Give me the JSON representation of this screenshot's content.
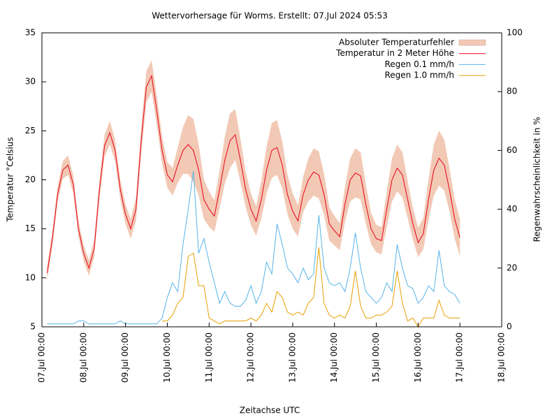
{
  "chart_data": {
    "type": "line",
    "title": "Wettervorhersage für Worms. Erstellt: 07.Jul 2024 05:53",
    "xlabel": "Zeitachse UTC",
    "ylabel": "Temperatur °Celsius",
    "y2label": "Regenwahrscheinlichkeit in %",
    "legend": "top-right",
    "x": [
      3,
      6,
      9,
      12,
      15,
      18,
      21,
      24,
      27,
      30,
      33,
      36,
      39,
      42,
      45,
      48,
      51,
      54,
      57,
      60,
      63,
      66,
      69,
      72,
      75,
      78,
      81,
      84,
      87,
      90,
      93,
      96,
      99,
      102,
      105,
      108,
      111,
      114,
      117,
      120,
      123,
      126,
      129,
      132,
      135,
      138,
      141,
      144,
      147,
      150,
      153,
      156,
      159,
      162,
      165,
      168,
      171,
      174,
      177,
      180,
      183,
      186,
      189,
      192,
      195,
      198,
      201,
      204,
      207,
      210,
      213,
      216,
      219,
      222,
      225,
      228,
      231,
      234,
      237,
      240
    ],
    "xlim": [
      0,
      264
    ],
    "xticks": [
      {
        "value": 0,
        "label": "07.Jul 00:00"
      },
      {
        "value": 24,
        "label": "08.Jul 00:00"
      },
      {
        "value": 48,
        "label": "09.Jul 00:00"
      },
      {
        "value": 72,
        "label": "10.Jul 00:00"
      },
      {
        "value": 96,
        "label": "11.Jul 00:00"
      },
      {
        "value": 120,
        "label": "12.Jul 00:00"
      },
      {
        "value": 144,
        "label": "13.Jul 00:00"
      },
      {
        "value": 168,
        "label": "14.Jul 00:00"
      },
      {
        "value": 192,
        "label": "15.Jul 00:00"
      },
      {
        "value": 216,
        "label": "16.Jul 00:00"
      },
      {
        "value": 240,
        "label": "17.Jul 00:00"
      },
      {
        "value": 264,
        "label": "18.Jul 00:00"
      }
    ],
    "ylim": [
      5,
      35
    ],
    "yticks": [
      5,
      10,
      15,
      20,
      25,
      30,
      35
    ],
    "y2lim": [
      0,
      100
    ],
    "y2ticks": [
      0,
      20,
      40,
      60,
      80,
      100
    ],
    "series": [
      {
        "name": "Absoluter Temperaturfehler",
        "color": "#f2c9b5",
        "style": "errorband",
        "values": [
          0.7,
          0.8,
          0.8,
          0.9,
          1,
          0.9,
          0.8,
          0.8,
          0.8,
          0.9,
          1,
          1.1,
          1.2,
          1.1,
          1,
          1,
          1,
          1.2,
          1.4,
          1.6,
          1.6,
          1.5,
          1.4,
          1.3,
          1.4,
          1.8,
          2.4,
          3,
          3.2,
          2.6,
          2,
          1.8,
          1.6,
          1.9,
          2.4,
          2.8,
          2.6,
          2.2,
          1.8,
          1.6,
          1.5,
          1.9,
          2.4,
          2.8,
          2.8,
          2.4,
          2,
          1.8,
          1.6,
          1.8,
          2.2,
          2.4,
          2.4,
          2.1,
          1.7,
          1.5,
          1.4,
          1.8,
          2.2,
          2.5,
          2.4,
          2,
          1.6,
          1.4,
          1.4,
          1.8,
          2.2,
          2.4,
          2.3,
          1.9,
          1.6,
          1.5,
          1.6,
          2.1,
          2.6,
          2.8,
          2.6,
          2.2,
          2,
          1.9
        ]
      },
      {
        "name": "Temperatur in 2 Meter Höhe",
        "color": "#e8001a",
        "values": [
          10.5,
          14,
          18.5,
          21,
          21.5,
          19.5,
          15,
          12.5,
          11,
          13,
          19,
          23.5,
          24.8,
          23,
          19,
          16.5,
          15,
          17,
          24,
          29.5,
          30.6,
          27,
          23,
          20.5,
          19.8,
          21.5,
          23,
          23.6,
          23,
          21,
          18,
          17,
          16.3,
          19,
          22,
          24,
          24.6,
          22,
          19,
          17,
          15.8,
          18,
          21,
          23,
          23.3,
          21.5,
          18.5,
          16.8,
          15.8,
          18.5,
          20,
          20.8,
          20.5,
          18.5,
          15.5,
          14.8,
          14.2,
          17.5,
          20,
          20.7,
          20.4,
          17.5,
          15,
          14,
          13.8,
          17,
          20,
          21.2,
          20.5,
          18,
          15.5,
          13.6,
          14.5,
          18,
          21,
          22.2,
          21.5,
          19,
          16,
          14.1
        ]
      },
      {
        "name": "Regen 0.1 mm/h",
        "color": "#56b4e9",
        "axis": "y2",
        "values": [
          1,
          1,
          1,
          1,
          1,
          1,
          2,
          2,
          1,
          1,
          1,
          1,
          1,
          1,
          2,
          1,
          1,
          1,
          1,
          1,
          1,
          1,
          3,
          10,
          15,
          12,
          28,
          40,
          53,
          25,
          30,
          22,
          15,
          8,
          12,
          8,
          7,
          7,
          9,
          14,
          8,
          12,
          22,
          18,
          35,
          28,
          20,
          18,
          15,
          20,
          16,
          18,
          38,
          20,
          15,
          14,
          15,
          12,
          20,
          32,
          20,
          12,
          10,
          8,
          10,
          15,
          12,
          28,
          20,
          14,
          13,
          8,
          10,
          14,
          12,
          26,
          14,
          12,
          11,
          8
        ]
      },
      {
        "name": "Regen 1.0 mm/h",
        "color": "#e69f00",
        "axis": "y2",
        "values": [
          null,
          null,
          null,
          null,
          null,
          null,
          null,
          null,
          null,
          null,
          null,
          null,
          null,
          null,
          null,
          null,
          null,
          null,
          null,
          null,
          null,
          null,
          2,
          2,
          4,
          8,
          10,
          24,
          25,
          14,
          14,
          3,
          2,
          1,
          2,
          2,
          2,
          2,
          2,
          3,
          2,
          4,
          8,
          5,
          12,
          10,
          5,
          4,
          5,
          4,
          8,
          10,
          27,
          8,
          4,
          3,
          4,
          3,
          7,
          19,
          7,
          3,
          3,
          4,
          4,
          5,
          7,
          19,
          8,
          2,
          3,
          0,
          3,
          3,
          3,
          9,
          4,
          3,
          3,
          3
        ]
      }
    ]
  }
}
